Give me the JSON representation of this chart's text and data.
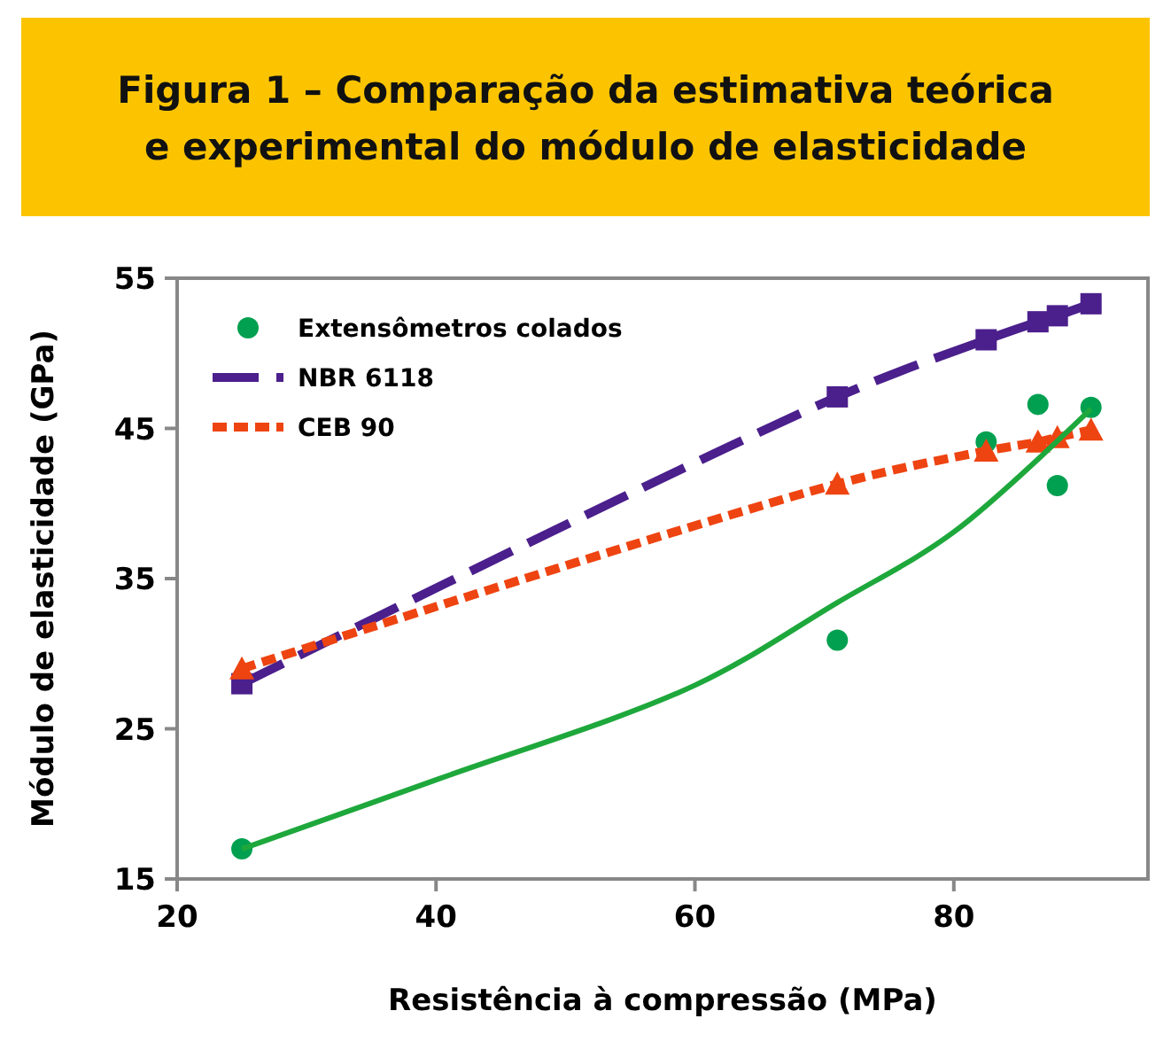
{
  "chart_data": {
    "type": "scatter",
    "title": "Figura 1 – Comparação da estimativa teórica e experimental do módulo de elasticidade",
    "xlabel": "Resistência à compressão (MPa)",
    "ylabel": "Módulo de elasticidade (GPa)",
    "xlim": [
      20,
      95
    ],
    "xticks": [
      20,
      40,
      60,
      80
    ],
    "ylim": [
      15,
      55
    ],
    "yticks": [
      15,
      25,
      35,
      45,
      55
    ],
    "grid": false,
    "legend": "top left",
    "series": [
      {
        "name": "Extensômetros colados",
        "type": "scatter",
        "marker": "circle",
        "color": "#00a050",
        "x": [
          25,
          71,
          82.5,
          86.5,
          88,
          90.6
        ],
        "values": [
          17,
          30.9,
          44.1,
          46.6,
          41.2,
          46.4
        ]
      },
      {
        "name": "NBR 6118",
        "type": "line",
        "marker": "square",
        "line_style": "dashed",
        "color": "#4b1f8c",
        "x": [
          25,
          71,
          82.5,
          86.5,
          88,
          90.6
        ],
        "values": [
          28,
          47.1,
          50.9,
          52.1,
          52.5,
          53.3
        ]
      },
      {
        "name": "CEB 90",
        "type": "line",
        "marker": "triangle",
        "line_style": "dotted",
        "color": "#ee4411",
        "x": [
          25,
          71,
          82.5,
          86.5,
          88,
          90.6
        ],
        "values": [
          29,
          41.3,
          43.5,
          44.1,
          44.4,
          44.9
        ]
      },
      {
        "type": "line",
        "marker": "none",
        "line_style": "solid",
        "color": "#1ea83c",
        "x": [
          25,
          40,
          60,
          71,
          80,
          90.6
        ],
        "values": [
          17,
          21.6,
          27.9,
          33.4,
          38.1,
          46.3
        ]
      }
    ]
  }
}
